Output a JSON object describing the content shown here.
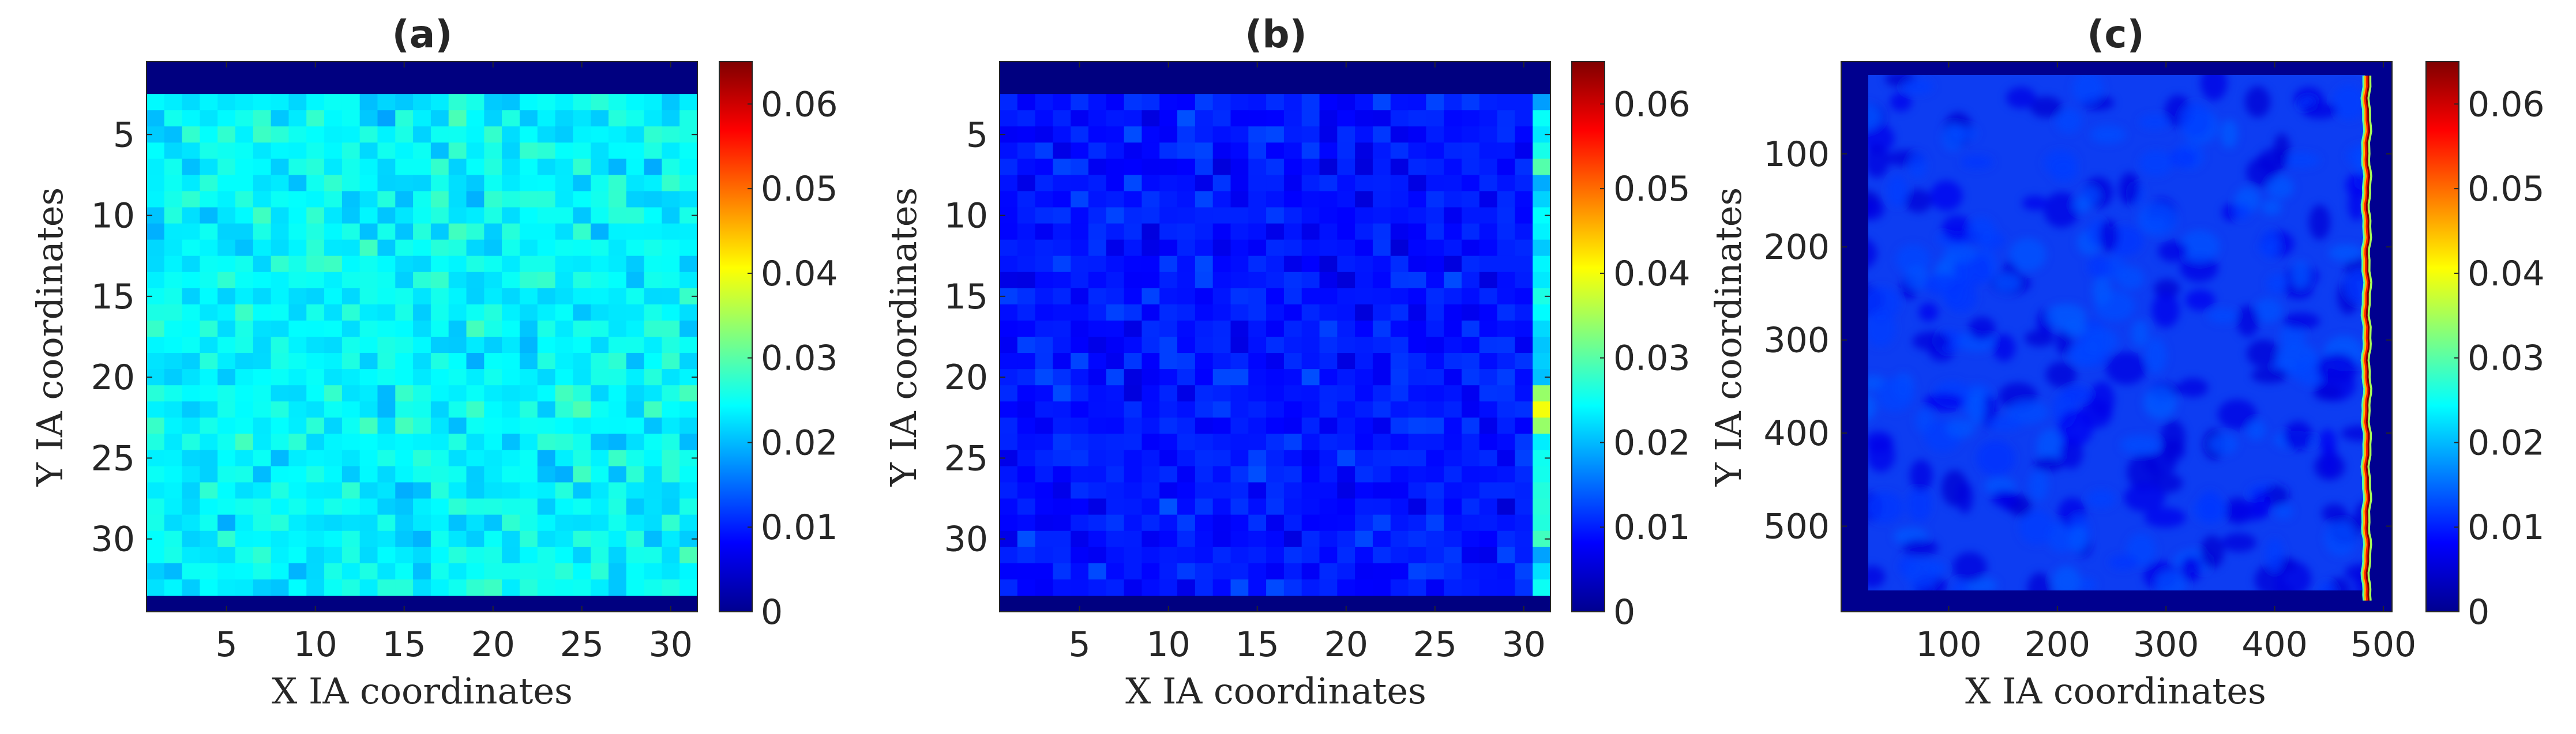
{
  "chart_data": [
    {
      "type": "heatmap",
      "title": "(a)",
      "xlabel": "X IA coordinates",
      "ylabel": "Y IA coordinates",
      "xlim": [
        0.5,
        31.5
      ],
      "ylim": [
        0.5,
        34.5
      ],
      "y_direction": "reversed",
      "grid_size": [
        31,
        31
      ],
      "grid_origin": [
        1,
        3
      ],
      "border_cells": "zero",
      "xticks": [
        5,
        10,
        15,
        20,
        25,
        30
      ],
      "yticks": [
        5,
        10,
        15,
        20,
        25,
        30
      ],
      "interior_value_range": [
        0.018,
        0.03
      ],
      "interior_mean": 0.022,
      "colorbar": {
        "colormap": "jet",
        "clim": [
          0,
          0.065
        ],
        "ticks": [
          0,
          0.01,
          0.02,
          0.03,
          0.04,
          0.05,
          0.06
        ]
      }
    },
    {
      "type": "heatmap",
      "title": "(b)",
      "xlabel": "X IA coordinates",
      "ylabel": "Y IA coordinates",
      "xlim": [
        0.5,
        31.5
      ],
      "ylim": [
        0.5,
        34.5
      ],
      "y_direction": "reversed",
      "grid_size": [
        31,
        31
      ],
      "grid_origin": [
        1,
        3
      ],
      "border_cells": "zero",
      "xticks": [
        5,
        10,
        15,
        20,
        25,
        30
      ],
      "yticks": [
        5,
        10,
        15,
        20,
        25,
        30
      ],
      "interior_value_range": [
        0.005,
        0.014
      ],
      "interior_mean": 0.009,
      "right_column_value_range": [
        0.018,
        0.04
      ],
      "right_column_peak": {
        "y": 22,
        "value": 0.04
      },
      "colorbar": {
        "colormap": "jet",
        "clim": [
          0,
          0.065
        ],
        "ticks": [
          0,
          0.01,
          0.02,
          0.03,
          0.04,
          0.05,
          0.06
        ]
      }
    },
    {
      "type": "heatmap",
      "title": "(c)",
      "xlabel": "X IA coordinates",
      "ylabel": "Y IA coordinates",
      "xlim": [
        1,
        508
      ],
      "ylim": [
        1,
        592
      ],
      "y_direction": "reversed",
      "data_extent": {
        "x": [
          16,
          488
        ],
        "y": [
          16,
          580
        ]
      },
      "xticks": [
        100,
        200,
        300,
        400,
        500
      ],
      "yticks": [
        100,
        200,
        300,
        400,
        500
      ],
      "interior_value_range": [
        0.005,
        0.014
      ],
      "interior_mean": 0.009,
      "right_edge": {
        "x": 485,
        "value_range": [
          0.055,
          0.065
        ]
      },
      "colorbar": {
        "colormap": "jet",
        "clim": [
          0,
          0.065
        ],
        "ticks": [
          0,
          0.01,
          0.02,
          0.03,
          0.04,
          0.05,
          0.06
        ]
      }
    }
  ]
}
